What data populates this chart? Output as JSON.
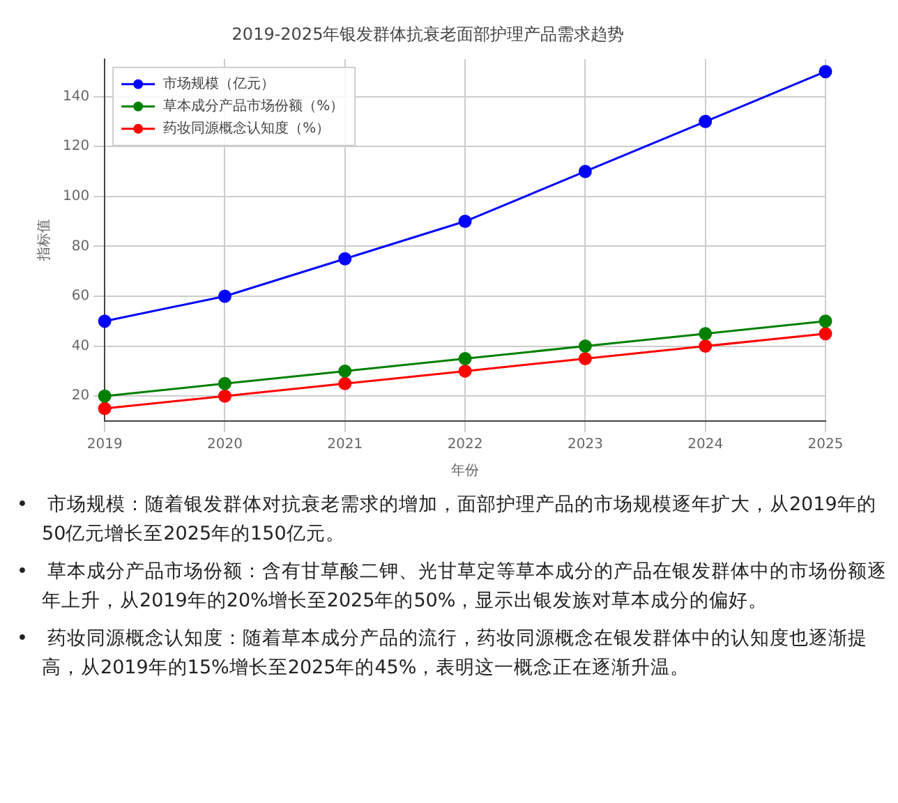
{
  "chart_data": {
    "type": "line",
    "title": "2019-2025年银发群体抗衰老面部护理产品需求趋势",
    "xlabel": "年份",
    "ylabel": "指标值",
    "categories": [
      "2019",
      "2020",
      "2021",
      "2022",
      "2023",
      "2024",
      "2025"
    ],
    "series": [
      {
        "name": "市场规模（亿元）",
        "color": "#0000ff",
        "values": [
          50,
          60,
          75,
          90,
          110,
          130,
          150
        ]
      },
      {
        "name": "草本成分产品市场份额（%）",
        "color": "#008000",
        "values": [
          20,
          25,
          30,
          35,
          40,
          45,
          50
        ]
      },
      {
        "name": "药妆同源概念认知度（%）",
        "color": "#ff0000",
        "values": [
          15,
          20,
          25,
          30,
          35,
          40,
          45
        ]
      }
    ],
    "ylim": [
      10,
      155
    ],
    "yticks": [
      20,
      40,
      60,
      80,
      100,
      120,
      140
    ],
    "grid": true,
    "legend": "top left",
    "marker": "circle",
    "line_style": "solid",
    "annotations": [
      "•　市场规模：随着银发群体对抗衰老需求的增加，面部护理产品的市场规模逐年扩大，从2019年的50亿元增长至2025年的150亿元。",
      "•　草本成分产品市场份额：含有甘草酸二钾、光甘草定等草本成分的产品在银发群体中的市场份额逐年上升，从2019年的20%增长至2025年的50%，显示出银发族对草本成分的偏好。",
      "•　药妆同源概念认知度：随着草本成分产品的流行，药妆同源概念在银发群体中的认知度也逐渐提高，从2019年的15%增长至2025年的45%，表明这一概念正在逐渐升温。"
    ]
  }
}
